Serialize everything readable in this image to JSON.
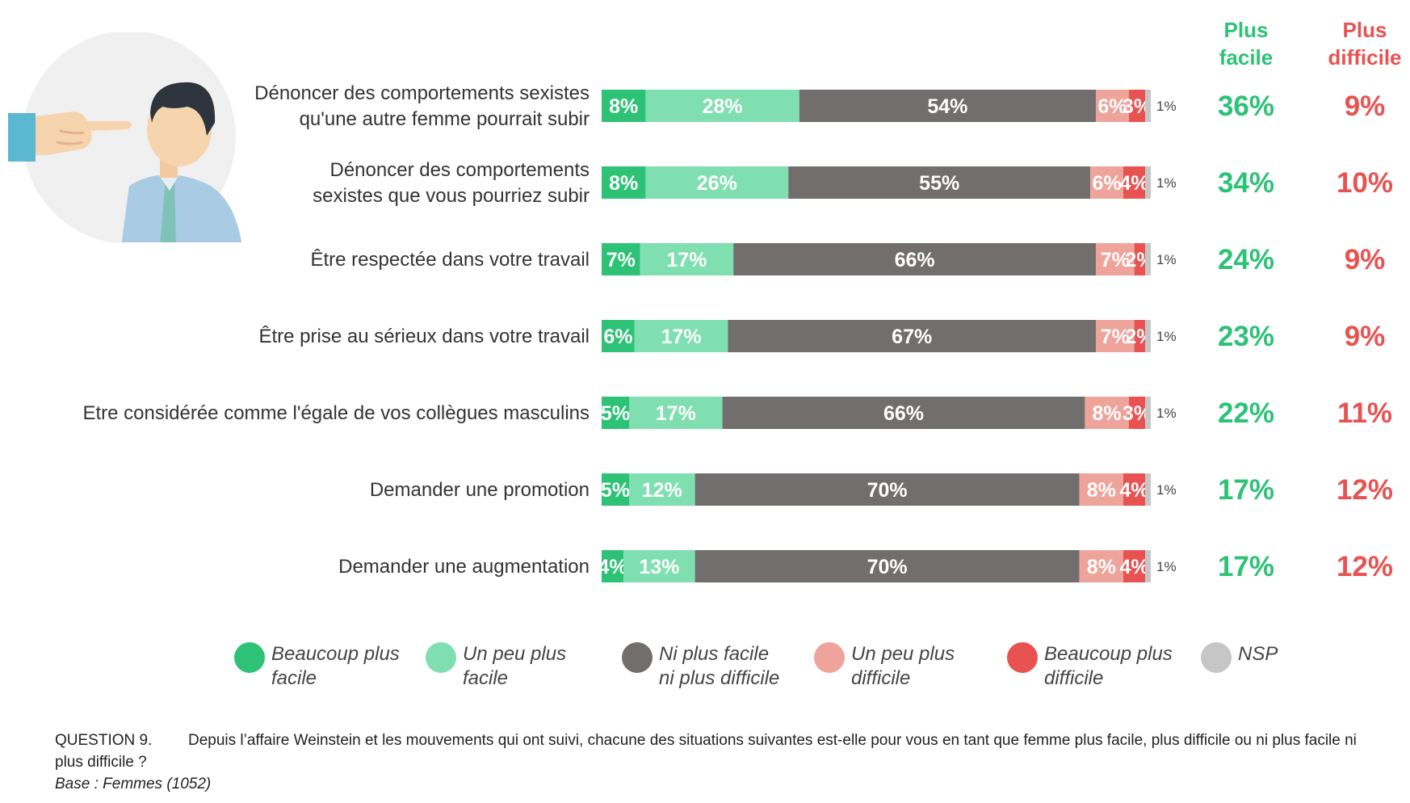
{
  "chart_data": {
    "type": "stacked-bar-horizontal",
    "series": [
      {
        "name": "Beaucoup plus facile",
        "color": "#2dc275"
      },
      {
        "name": "Un peu plus facile",
        "color": "#7fdfb0"
      },
      {
        "name": "Ni plus facile ni plus difficile",
        "color": "#716e6d"
      },
      {
        "name": "Un peu plus difficile",
        "color": "#eea39b"
      },
      {
        "name": "Beaucoup plus difficile",
        "color": "#e85352"
      },
      {
        "name": "NSP",
        "color": "#c6c6c6"
      }
    ],
    "rows": [
      {
        "label_lines": [
          "Dénoncer des comportements sexistes",
          "qu'une autre femme pourrait subir"
        ],
        "values": [
          8,
          28,
          54,
          6,
          3,
          1
        ],
        "labels": [
          "8%",
          "28%",
          "54%",
          "6%",
          "3%",
          "1%"
        ],
        "plus_facile": "36%",
        "plus_difficile": "9%"
      },
      {
        "label_lines": [
          "Dénoncer des comportements",
          "sexistes que vous pourriez subir"
        ],
        "values": [
          8,
          26,
          55,
          6,
          4,
          1
        ],
        "labels": [
          "8%",
          "26%",
          "55%",
          "6%",
          "4%",
          "1%"
        ],
        "plus_facile": "34%",
        "plus_difficile": "10%"
      },
      {
        "label_lines": [
          "Être respectée dans votre travail"
        ],
        "values": [
          7,
          17,
          66,
          7,
          2,
          1
        ],
        "labels": [
          "7%",
          "17%",
          "66%",
          "7%",
          "2%",
          "1%"
        ],
        "plus_facile": "24%",
        "plus_difficile": "9%"
      },
      {
        "label_lines": [
          "Être prise au sérieux dans votre travail"
        ],
        "values": [
          6,
          17,
          67,
          7,
          2,
          1
        ],
        "labels": [
          "6%",
          "17%",
          "67%",
          "7%",
          "2%",
          "1%"
        ],
        "plus_facile": "23%",
        "plus_difficile": "9%"
      },
      {
        "label_lines": [
          "Etre considérée comme l'égale de vos collègues masculins"
        ],
        "values": [
          5,
          17,
          66,
          8,
          3,
          1
        ],
        "labels": [
          "5%",
          "17%",
          "66%",
          "8%",
          "3%",
          "1%"
        ],
        "plus_facile": "22%",
        "plus_difficile": "11%"
      },
      {
        "label_lines": [
          "Demander une promotion"
        ],
        "values": [
          5,
          12,
          70,
          8,
          4,
          1
        ],
        "labels": [
          "5%",
          "12%",
          "70%",
          "8%",
          "4%",
          "1%"
        ],
        "plus_facile": "17%",
        "plus_difficile": "12%"
      },
      {
        "label_lines": [
          "Demander une augmentation"
        ],
        "values": [
          4,
          13,
          70,
          8,
          4,
          1
        ],
        "labels": [
          "4%",
          "13%",
          "70%",
          "8%",
          "4%",
          "1%"
        ],
        "plus_facile": "17%",
        "plus_difficile": "12%"
      }
    ],
    "columns": {
      "plus_facile": {
        "lines": [
          "Plus",
          "facile"
        ],
        "color": "#2dc275"
      },
      "plus_difficile": {
        "lines": [
          "Plus",
          "difficile"
        ],
        "color": "#e85352"
      }
    }
  },
  "legend": [
    {
      "text": "Beaucoup plus\nfacile",
      "color": "#2dc275"
    },
    {
      "text": "Un peu plus\nfacile",
      "color": "#7fdfb0"
    },
    {
      "text": "Ni plus facile\nni plus difficile",
      "color": "#716e6d"
    },
    {
      "text": "Un peu plus\ndifficile",
      "color": "#eea39b"
    },
    {
      "text": "Beaucoup plus\ndifficile",
      "color": "#e85352"
    },
    {
      "text": "NSP",
      "color": "#c6c6c6"
    }
  ],
  "footnote": {
    "question_label": "QUESTION 9.",
    "question_text": "Depuis l’affaire Weinstein et les mouvements qui ont suivi, chacune des situations suivantes est-elle pour vous en tant que femme plus facile, plus difficile ou ni plus facile ni plus difficile ?",
    "base": "Base : Femmes (1052)"
  }
}
